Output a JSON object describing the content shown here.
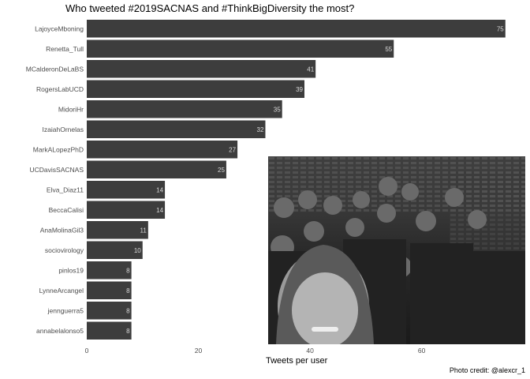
{
  "chart_data": {
    "type": "bar",
    "orientation": "horizontal",
    "title": "Who tweeted #2019SACNAS and #ThinkBigDiversity the most?",
    "xlabel": "Tweets per user",
    "ylabel": "",
    "categories": [
      "LajoyceMboning",
      "Renetta_Tull",
      "MCalderonDeLaBS",
      "RogersLabUCD",
      "MidoriHr",
      "IzaiahOrnelas",
      "MarkALopezPhD",
      "UCDavisSACNAS",
      "Elva_Diaz11",
      "BeccaCalisi",
      "AnaMolinaGil3",
      "sociovirology",
      "pinlos19",
      "LynneArcangel",
      "jennguerra5",
      "annabelalonso5"
    ],
    "values": [
      75,
      55,
      41,
      39,
      35,
      32,
      27,
      25,
      14,
      14,
      11,
      10,
      8,
      8,
      8,
      8
    ],
    "xlim": [
      0,
      80
    ],
    "xticks": [
      0,
      20,
      40,
      60
    ],
    "grid": false,
    "data_labels": true,
    "bar_color": "#3d3d3d",
    "label_color": "#d9d9d9"
  },
  "caption": "Photo credit: @alexcr_1"
}
